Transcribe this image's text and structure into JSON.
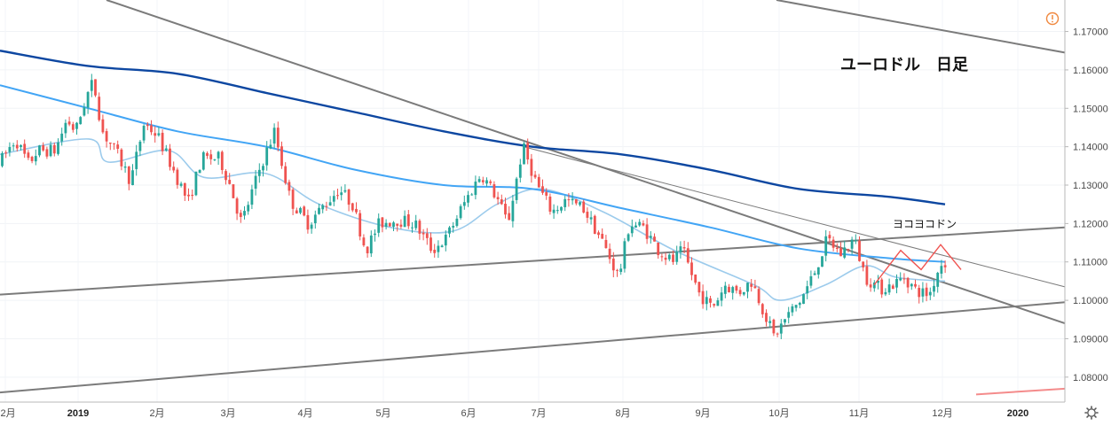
{
  "chart_data": {
    "type": "candlestick",
    "title": "ユーロドル　日足",
    "annotation": "ヨコヨコドン",
    "y_axis": {
      "range": [
        1.0735,
        1.1782
      ],
      "ticks": [
        "1.17000",
        "1.16000",
        "1.15000",
        "1.14000",
        "1.13000",
        "1.12000",
        "1.11000",
        "1.10000",
        "1.09000",
        "1.08000"
      ]
    },
    "x_axis": {
      "ticks": [
        {
          "label": "12月",
          "bold": false
        },
        {
          "label": "2019",
          "bold": true
        },
        {
          "label": "2月",
          "bold": false
        },
        {
          "label": "3月",
          "bold": false
        },
        {
          "label": "4月",
          "bold": false
        },
        {
          "label": "5月",
          "bold": false
        },
        {
          "label": "6月",
          "bold": false
        },
        {
          "label": "7月",
          "bold": false
        },
        {
          "label": "8月",
          "bold": false
        },
        {
          "label": "9月",
          "bold": false
        },
        {
          "label": "10月",
          "bold": false
        },
        {
          "label": "11月",
          "bold": false
        },
        {
          "label": "12月",
          "bold": false
        },
        {
          "label": "2020",
          "bold": true
        }
      ]
    },
    "colors": {
      "up": "#26a69a",
      "down": "#ef5350",
      "ma_short": "#9ccbec",
      "ma_mid": "#42a5f5",
      "ma_long": "#0d47a1",
      "trendline": "#7b7b7b",
      "pattern": "#ef5350"
    },
    "anchors": [
      {
        "t": 0,
        "p": 1.135
      },
      {
        "t": 20,
        "p": 1.142
      },
      {
        "t": 35,
        "p": 1.1355
      },
      {
        "t": 45,
        "p": 1.139
      },
      {
        "t": 65,
        "p": 1.139
      },
      {
        "t": 78,
        "p": 1.147
      },
      {
        "t": 88,
        "p": 1.144
      },
      {
        "t": 100,
        "p": 1.153
      },
      {
        "t": 108,
        "p": 1.157
      },
      {
        "t": 118,
        "p": 1.144
      },
      {
        "t": 135,
        "p": 1.138
      },
      {
        "t": 150,
        "p": 1.131
      },
      {
        "t": 165,
        "p": 1.146
      },
      {
        "t": 180,
        "p": 1.143
      },
      {
        "t": 200,
        "p": 1.133
      },
      {
        "t": 215,
        "p": 1.1255
      },
      {
        "t": 230,
        "p": 1.137
      },
      {
        "t": 250,
        "p": 1.137
      },
      {
        "t": 262,
        "p": 1.13
      },
      {
        "t": 275,
        "p": 1.12
      },
      {
        "t": 295,
        "p": 1.134
      },
      {
        "t": 312,
        "p": 1.144
      },
      {
        "t": 330,
        "p": 1.126
      },
      {
        "t": 350,
        "p": 1.12
      },
      {
        "t": 365,
        "p": 1.124
      },
      {
        "t": 385,
        "p": 1.129
      },
      {
        "t": 400,
        "p": 1.125
      },
      {
        "t": 415,
        "p": 1.113
      },
      {
        "t": 430,
        "p": 1.12
      },
      {
        "t": 450,
        "p": 1.121
      },
      {
        "t": 470,
        "p": 1.12
      },
      {
        "t": 490,
        "p": 1.113
      },
      {
        "t": 505,
        "p": 1.116
      },
      {
        "t": 525,
        "p": 1.125
      },
      {
        "t": 545,
        "p": 1.133
      },
      {
        "t": 562,
        "p": 1.127
      },
      {
        "t": 575,
        "p": 1.12
      },
      {
        "t": 592,
        "p": 1.14
      },
      {
        "t": 608,
        "p": 1.13
      },
      {
        "t": 625,
        "p": 1.123
      },
      {
        "t": 640,
        "p": 1.126
      },
      {
        "t": 660,
        "p": 1.124
      },
      {
        "t": 680,
        "p": 1.116
      },
      {
        "t": 700,
        "p": 1.106
      },
      {
        "t": 712,
        "p": 1.12
      },
      {
        "t": 728,
        "p": 1.119
      },
      {
        "t": 745,
        "p": 1.113
      },
      {
        "t": 760,
        "p": 1.11
      },
      {
        "t": 772,
        "p": 1.113
      },
      {
        "t": 790,
        "p": 1.102
      },
      {
        "t": 805,
        "p": 1.098
      },
      {
        "t": 820,
        "p": 1.104
      },
      {
        "t": 835,
        "p": 1.102
      },
      {
        "t": 850,
        "p": 1.105
      },
      {
        "t": 862,
        "p": 1.098
      },
      {
        "t": 875,
        "p": 1.0905
      },
      {
        "t": 890,
        "p": 1.096
      },
      {
        "t": 905,
        "p": 1.1
      },
      {
        "t": 920,
        "p": 1.107
      },
      {
        "t": 935,
        "p": 1.116
      },
      {
        "t": 950,
        "p": 1.112
      },
      {
        "t": 965,
        "p": 1.116
      },
      {
        "t": 978,
        "p": 1.106
      },
      {
        "t": 995,
        "p": 1.103
      },
      {
        "t": 1008,
        "p": 1.104
      },
      {
        "t": 1022,
        "p": 1.106
      },
      {
        "t": 1035,
        "p": 1.1025
      },
      {
        "t": 1050,
        "p": 1.1015
      },
      {
        "t": 1060,
        "p": 1.108
      },
      {
        "t": 1065,
        "p": 1.11
      }
    ],
    "moving_averages": [
      {
        "name": "short",
        "points": [
          [
            0,
            1.138
          ],
          [
            100,
            1.142
          ],
          [
            122,
            1.136
          ],
          [
            190,
            1.139
          ],
          [
            230,
            1.132
          ],
          [
            300,
            1.133
          ],
          [
            360,
            1.125
          ],
          [
            440,
            1.119
          ],
          [
            510,
            1.118
          ],
          [
            560,
            1.125
          ],
          [
            610,
            1.129
          ],
          [
            680,
            1.123
          ],
          [
            760,
            1.113
          ],
          [
            850,
            1.104
          ],
          [
            880,
            1.1
          ],
          [
            930,
            1.104
          ],
          [
            975,
            1.109
          ],
          [
            1010,
            1.106
          ],
          [
            1065,
            1.105
          ]
        ]
      },
      {
        "name": "mid",
        "points": [
          [
            0,
            1.156
          ],
          [
            100,
            1.15
          ],
          [
            200,
            1.144
          ],
          [
            300,
            1.14
          ],
          [
            400,
            1.134
          ],
          [
            500,
            1.13
          ],
          [
            600,
            1.129
          ],
          [
            700,
            1.124
          ],
          [
            800,
            1.119
          ],
          [
            900,
            1.1135
          ],
          [
            1000,
            1.111
          ],
          [
            1065,
            1.11
          ]
        ]
      },
      {
        "name": "long",
        "points": [
          [
            0,
            1.165
          ],
          [
            100,
            1.161
          ],
          [
            200,
            1.159
          ],
          [
            300,
            1.154
          ],
          [
            400,
            1.149
          ],
          [
            500,
            1.144
          ],
          [
            600,
            1.14
          ],
          [
            700,
            1.138
          ],
          [
            800,
            1.134
          ],
          [
            900,
            1.129
          ],
          [
            1000,
            1.127
          ],
          [
            1065,
            1.125
          ]
        ]
      }
    ],
    "trendlines": [
      {
        "points": [
          [
            120,
            1.1782
          ],
          [
            1200,
            1.094
          ]
        ],
        "width": 2
      },
      {
        "points": [
          [
            590,
            1.14
          ],
          [
            1200,
            1.1035
          ]
        ],
        "width": 1
      },
      {
        "points": [
          [
            875,
            1.1782
          ],
          [
            1200,
            1.1645
          ]
        ],
        "width": 2
      },
      {
        "points": [
          [
            0,
            1.1015
          ],
          [
            1200,
            1.119
          ]
        ],
        "width": 2
      },
      {
        "points": [
          [
            0,
            1.076
          ],
          [
            1200,
            1.0995
          ]
        ],
        "width": 2
      }
    ],
    "pattern": {
      "points": [
        [
          985,
          1.104
        ],
        [
          1015,
          1.113
        ],
        [
          1038,
          1.108
        ],
        [
          1060,
          1.1145
        ],
        [
          1083,
          1.108
        ]
      ]
    },
    "secondary_line": {
      "points": [
        [
          1100,
          1.0755
        ],
        [
          1200,
          1.077
        ]
      ]
    }
  }
}
